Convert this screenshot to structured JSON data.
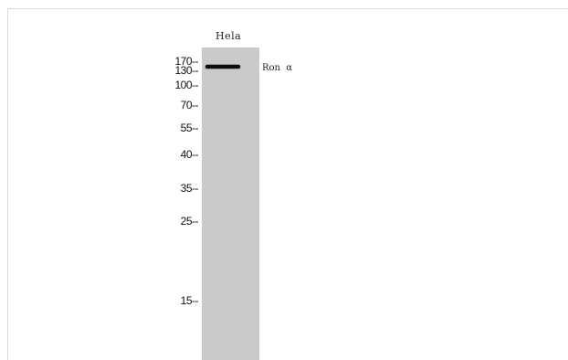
{
  "blot": {
    "lane_label": "Hela",
    "band_label": "Ron  α",
    "markers": [
      "170--",
      "130--",
      "100--",
      "70--",
      "55--",
      "40--",
      "35--",
      "25--",
      "15--"
    ]
  }
}
